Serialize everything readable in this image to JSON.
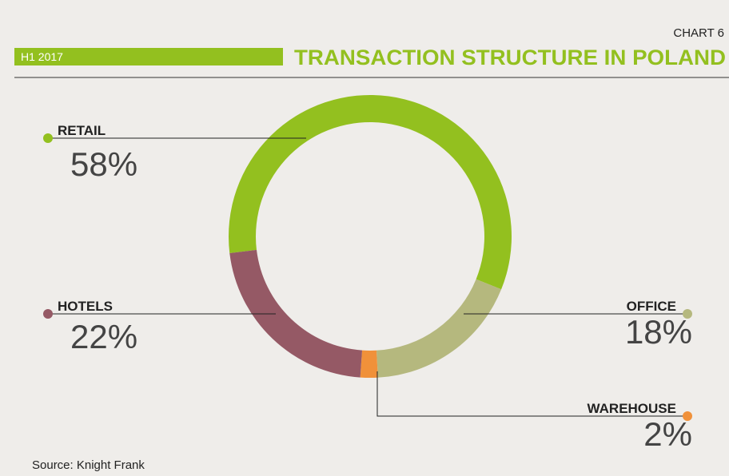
{
  "chart_data": {
    "type": "donut",
    "title": "TRANSACTION STRUCTURE IN POLAND",
    "chart_number": "CHART 6",
    "period": "H1 2017",
    "source": "Source: Knight Frank",
    "categories": [
      "RETAIL",
      "OFFICE",
      "WAREHOUSE",
      "HOTELS"
    ],
    "values": [
      58,
      18,
      2,
      22
    ],
    "value_labels": [
      "58%",
      "18%",
      "2%",
      "22%"
    ],
    "colors": [
      "#93c01f",
      "#b5b87e",
      "#f0913a",
      "#955965"
    ]
  }
}
